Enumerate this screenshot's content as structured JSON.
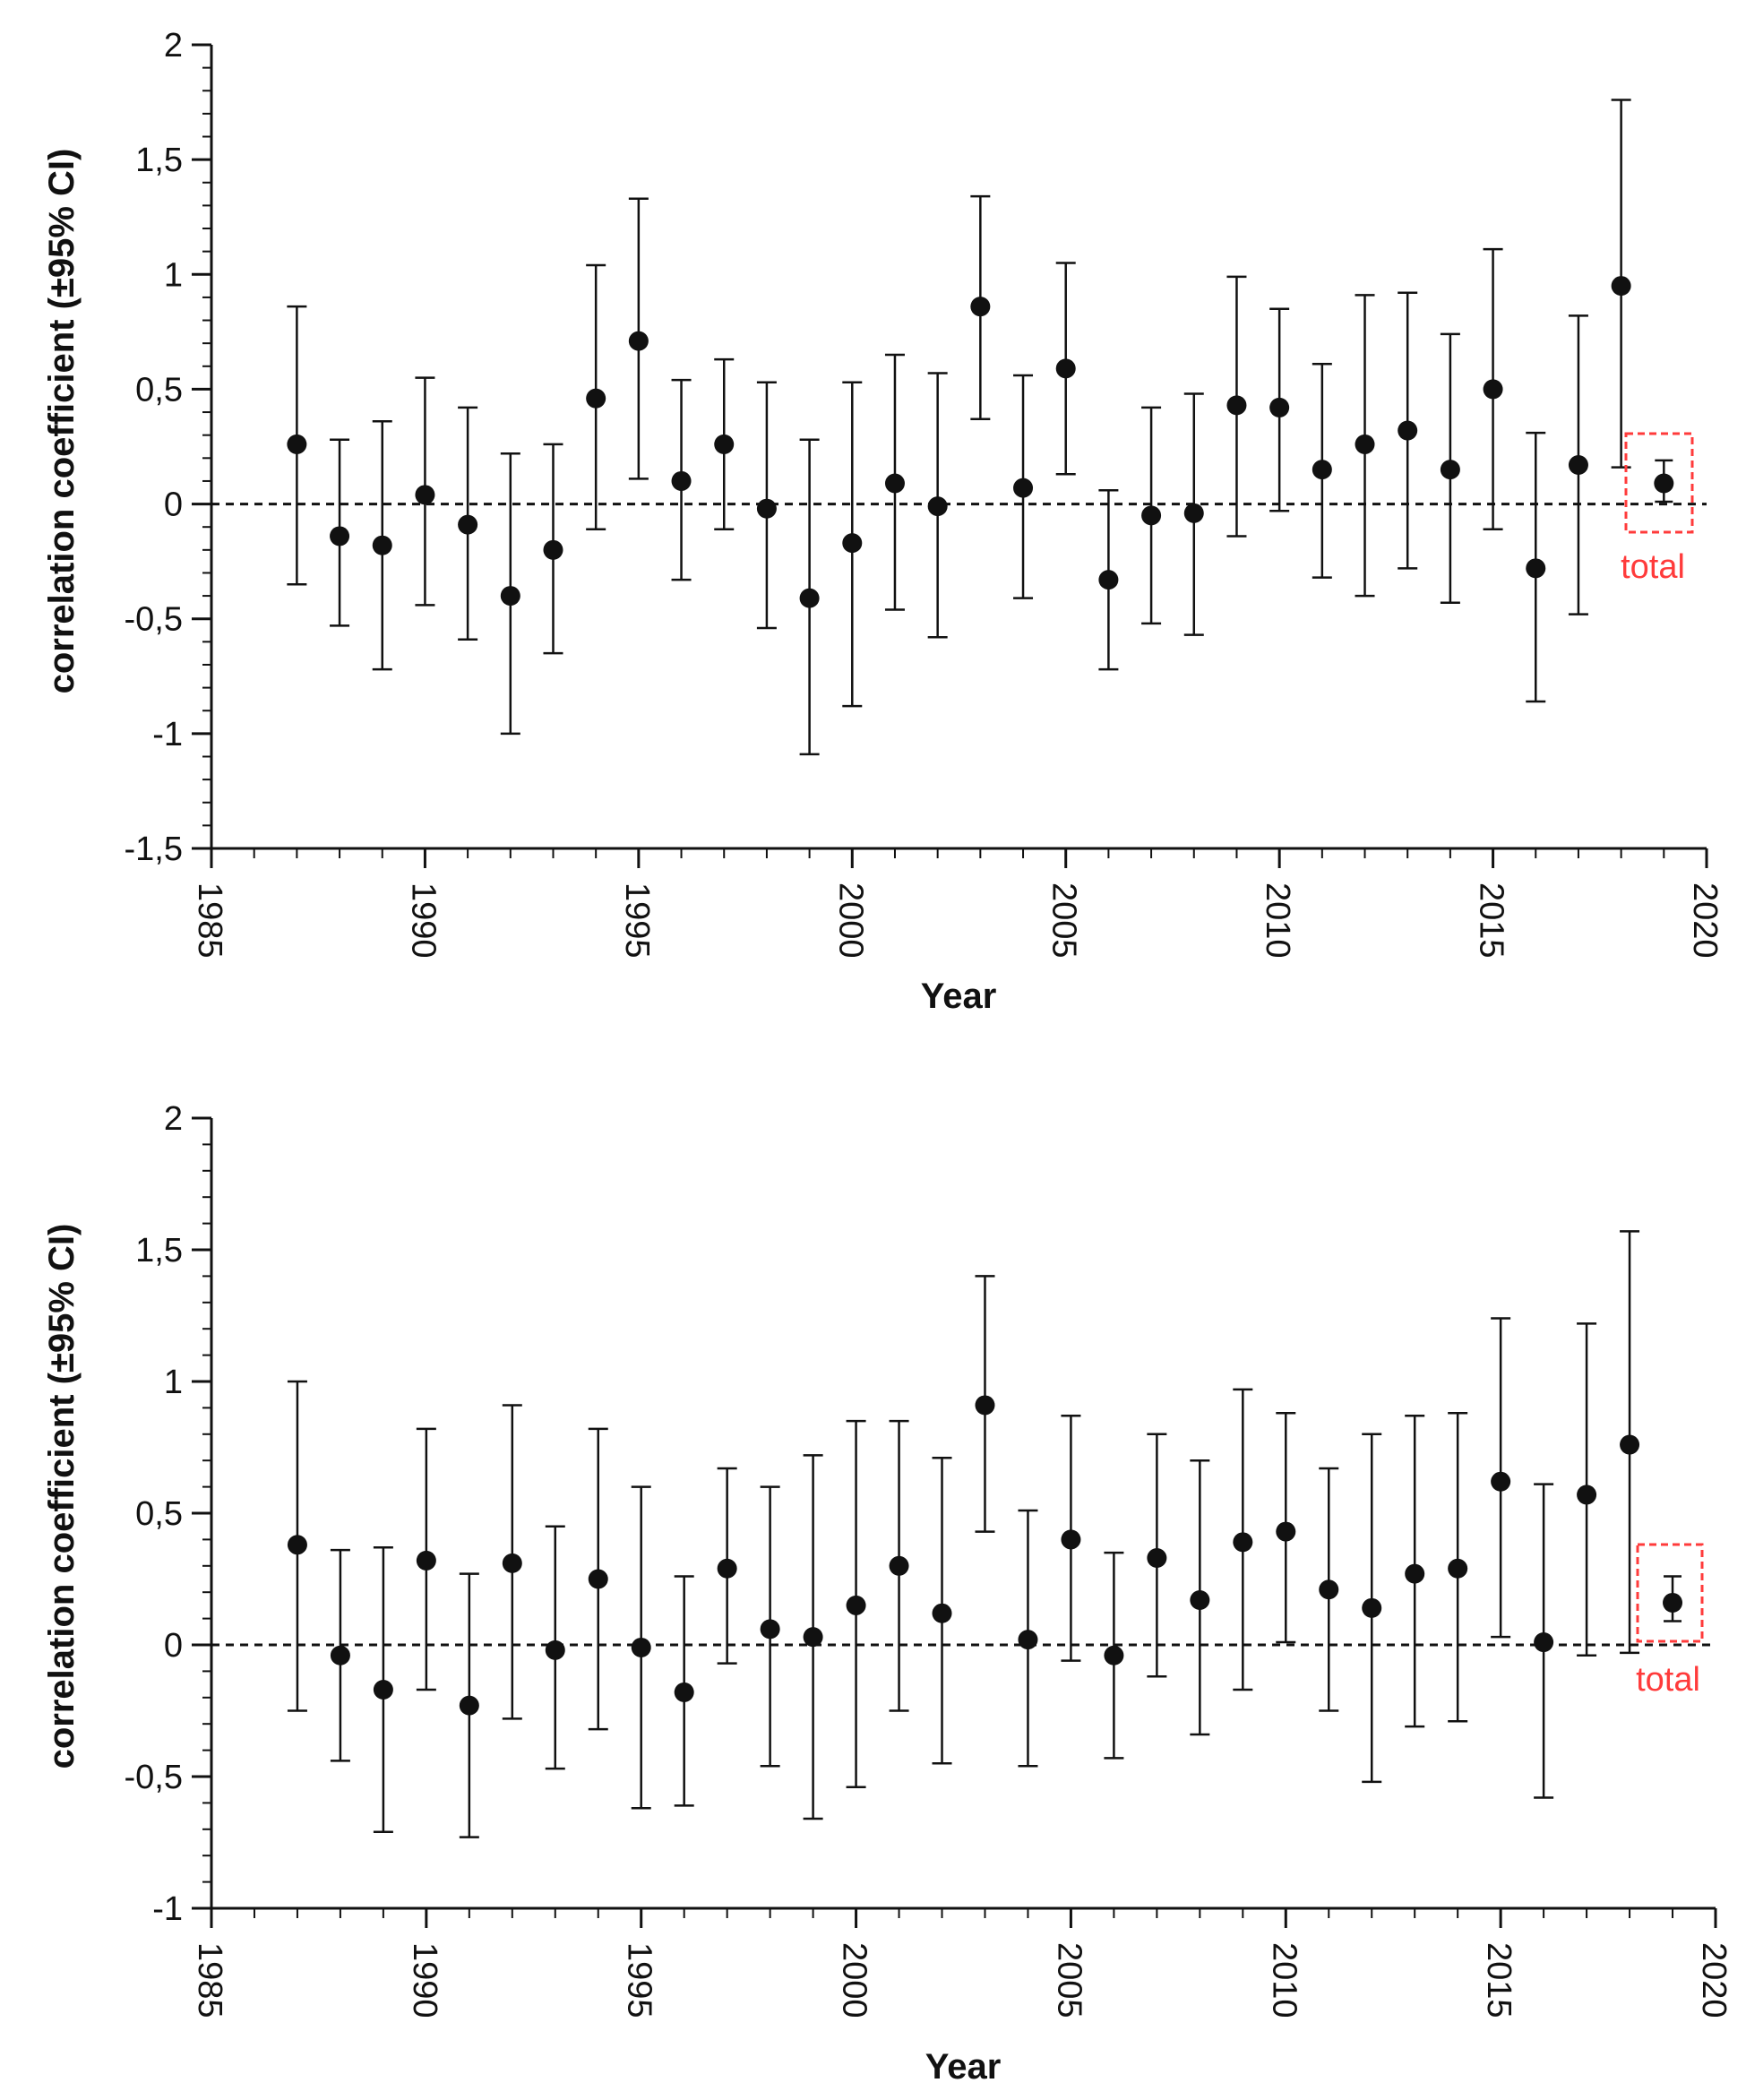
{
  "colors": {
    "ink": "#111111",
    "highlight": "#ff3b3b",
    "background": "#ffffff"
  },
  "chart_data": [
    {
      "type": "scatter",
      "title": "",
      "xlabel": "Year",
      "ylabel": "correlation coefficient (±95% CI)",
      "xlim": [
        1985,
        2020
      ],
      "ylim": [
        -1.5,
        2
      ],
      "x_ticks": [
        "1985",
        "1990",
        "1995",
        "2000",
        "2005",
        "2010",
        "2015",
        "2020"
      ],
      "y_ticks": [
        {
          "value": 2,
          "label": "2"
        },
        {
          "value": 1.5,
          "label": "1,5"
        },
        {
          "value": 1,
          "label": "1"
        },
        {
          "value": 0.5,
          "label": "0,5"
        },
        {
          "value": 0,
          "label": "0"
        },
        {
          "value": -0.5,
          "label": "-0,5"
        },
        {
          "value": -1,
          "label": "-1"
        },
        {
          "value": -1.5,
          "label": "-1,5"
        }
      ],
      "reference_line": 0,
      "x": [
        1987,
        1988,
        1989,
        1990,
        1991,
        1992,
        1993,
        1994,
        1995,
        1996,
        1997,
        1998,
        1999,
        2000,
        2001,
        2002,
        2003,
        2004,
        2005,
        2006,
        2007,
        2008,
        2009,
        2010,
        2011,
        2012,
        2013,
        2014,
        2015,
        2016,
        2017,
        2018
      ],
      "y": [
        0.26,
        -0.14,
        -0.18,
        0.04,
        -0.09,
        -0.4,
        -0.2,
        0.46,
        0.71,
        0.1,
        0.26,
        -0.02,
        -0.41,
        -0.17,
        0.09,
        -0.01,
        0.86,
        0.07,
        0.59,
        -0.33,
        -0.05,
        -0.04,
        0.43,
        0.42,
        0.15,
        0.26,
        0.32,
        0.15,
        0.5,
        -0.28,
        0.17,
        0.95
      ],
      "ci_low": [
        -0.35,
        -0.53,
        -0.72,
        -0.44,
        -0.59,
        -1.0,
        -0.65,
        -0.11,
        0.11,
        -0.33,
        -0.11,
        -0.54,
        -1.09,
        -0.88,
        -0.46,
        -0.58,
        0.37,
        -0.41,
        0.13,
        -0.72,
        -0.52,
        -0.57,
        -0.14,
        -0.03,
        -0.32,
        -0.4,
        -0.28,
        -0.43,
        -0.11,
        -0.86,
        -0.48,
        0.16
      ],
      "ci_high": [
        0.86,
        0.28,
        0.36,
        0.55,
        0.42,
        0.22,
        0.26,
        1.04,
        1.33,
        0.54,
        0.63,
        0.53,
        0.28,
        0.53,
        0.65,
        0.57,
        1.34,
        0.56,
        1.05,
        0.06,
        0.42,
        0.48,
        0.99,
        0.85,
        0.61,
        0.91,
        0.92,
        0.74,
        1.11,
        0.31,
        0.82,
        1.76
      ],
      "total": {
        "label": "total",
        "x": 2019,
        "y": 0.09,
        "ci_low": 0.01,
        "ci_high": 0.19
      }
    },
    {
      "type": "scatter",
      "title": "",
      "xlabel": "Year",
      "ylabel": "correlation coefficient (±95% CI)",
      "xlim": [
        1985,
        2020
      ],
      "ylim": [
        -1,
        2
      ],
      "x_ticks": [
        "1985",
        "1990",
        "1995",
        "2000",
        "2005",
        "2010",
        "2015",
        "2020"
      ],
      "y_ticks": [
        {
          "value": 2,
          "label": "2"
        },
        {
          "value": 1.5,
          "label": "1,5"
        },
        {
          "value": 1,
          "label": "1"
        },
        {
          "value": 0.5,
          "label": "0,5"
        },
        {
          "value": 0,
          "label": "0"
        },
        {
          "value": -0.5,
          "label": "-0,5"
        },
        {
          "value": -1,
          "label": "-1"
        }
      ],
      "reference_line": 0,
      "x": [
        1987,
        1988,
        1989,
        1990,
        1991,
        1992,
        1993,
        1994,
        1995,
        1996,
        1997,
        1998,
        1999,
        2000,
        2001,
        2002,
        2003,
        2004,
        2005,
        2006,
        2007,
        2008,
        2009,
        2010,
        2011,
        2012,
        2013,
        2014,
        2015,
        2016,
        2017,
        2018
      ],
      "y": [
        0.38,
        -0.04,
        -0.17,
        0.32,
        -0.23,
        0.31,
        -0.02,
        0.25,
        -0.01,
        -0.18,
        0.29,
        0.06,
        0.03,
        0.15,
        0.3,
        0.12,
        0.91,
        0.02,
        0.4,
        -0.04,
        0.33,
        0.17,
        0.39,
        0.43,
        0.21,
        0.14,
        0.27,
        0.29,
        0.62,
        0.01,
        0.57,
        0.76
      ],
      "ci_low": [
        -0.25,
        -0.44,
        -0.71,
        -0.17,
        -0.73,
        -0.28,
        -0.47,
        -0.32,
        -0.62,
        -0.61,
        -0.07,
        -0.46,
        -0.66,
        -0.54,
        -0.25,
        -0.45,
        0.43,
        -0.46,
        -0.06,
        -0.43,
        -0.12,
        -0.34,
        -0.17,
        0.01,
        -0.25,
        -0.52,
        -0.31,
        -0.29,
        0.03,
        -0.58,
        -0.04,
        -0.03
      ],
      "ci_high": [
        1.0,
        0.36,
        0.37,
        0.82,
        0.27,
        0.91,
        0.45,
        0.82,
        0.6,
        0.26,
        0.67,
        0.6,
        0.72,
        0.85,
        0.85,
        0.71,
        1.4,
        0.51,
        0.87,
        0.35,
        0.8,
        0.7,
        0.97,
        0.88,
        0.67,
        0.8,
        0.87,
        0.88,
        1.24,
        0.61,
        1.22,
        1.57
      ],
      "total": {
        "label": "total",
        "x": 2019,
        "y": 0.16,
        "ci_low": 0.09,
        "ci_high": 0.26
      }
    }
  ]
}
